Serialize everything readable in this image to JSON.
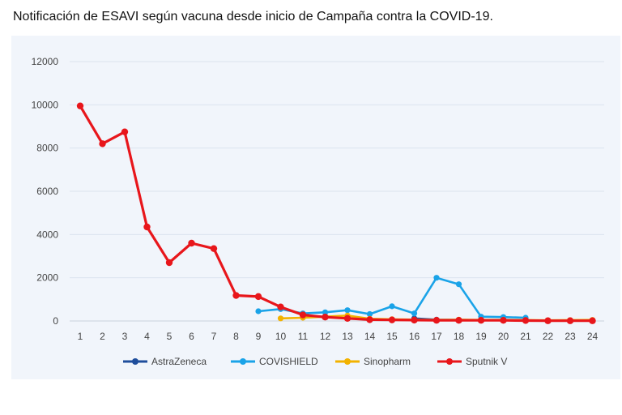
{
  "chart_data": {
    "type": "line",
    "title": "Notificación de ESAVI según vacuna desde inicio de Campaña contra la COVID-19.",
    "xlabel": "",
    "ylabel": "",
    "x": [
      1,
      2,
      3,
      4,
      5,
      6,
      7,
      8,
      9,
      10,
      11,
      12,
      13,
      14,
      15,
      16,
      17,
      18,
      19,
      20,
      21,
      22,
      23,
      24
    ],
    "ylim": [
      0,
      12000
    ],
    "yticks": [
      0,
      2000,
      4000,
      6000,
      8000,
      10000,
      12000
    ],
    "grid": true,
    "legend": "bottom",
    "series": [
      {
        "name": "AstraZeneca",
        "color": "#1f4e9c",
        "values": [
          null,
          null,
          null,
          null,
          null,
          null,
          null,
          null,
          null,
          null,
          null,
          null,
          null,
          null,
          null,
          120,
          60,
          50,
          40,
          40,
          30,
          20,
          20,
          20
        ]
      },
      {
        "name": "COVISHIELD",
        "color": "#1aa3e8",
        "values": [
          null,
          null,
          null,
          null,
          null,
          null,
          null,
          null,
          450,
          550,
          350,
          400,
          500,
          320,
          680,
          350,
          2000,
          1700,
          200,
          180,
          150,
          null,
          null,
          null
        ]
      },
      {
        "name": "Sinopharm",
        "color": "#f2b200",
        "values": [
          null,
          null,
          null,
          null,
          null,
          null,
          null,
          null,
          null,
          120,
          150,
          200,
          250,
          100,
          80,
          60,
          50,
          60,
          50,
          50,
          40,
          30,
          40,
          50
        ]
      },
      {
        "name": "Sputnik V",
        "color": "#e8161b",
        "values": [
          9950,
          8200,
          8750,
          4350,
          2700,
          3600,
          3350,
          1180,
          1130,
          650,
          280,
          180,
          120,
          60,
          50,
          40,
          30,
          30,
          30,
          30,
          20,
          10,
          10,
          10
        ]
      }
    ]
  }
}
